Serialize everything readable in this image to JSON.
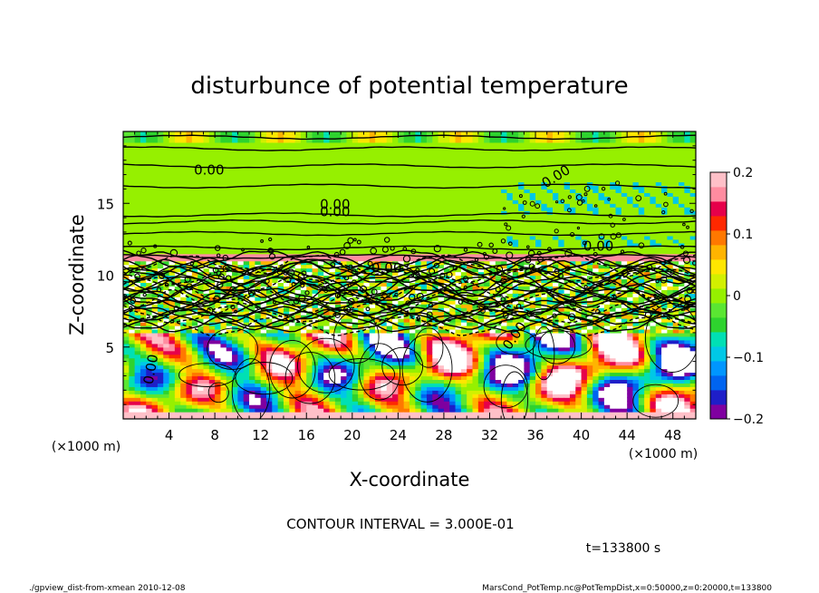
{
  "chart_data": {
    "type": "heatmap",
    "title": "disturbunce of potential temperature",
    "xlabel": "X-coordinate",
    "ylabel": "Z-coordinate",
    "x_unit": "(×1000 m)",
    "y_unit": "(×1000 m)",
    "xlim": [
      0,
      50
    ],
    "ylim": [
      0,
      20
    ],
    "xticks": [
      "4",
      "8",
      "12",
      "16",
      "20",
      "24",
      "28",
      "32",
      "36",
      "40",
      "44",
      "48"
    ],
    "yticks": [
      "5",
      "10",
      "15"
    ],
    "colorbar": {
      "min": -0.2,
      "max": 0.2,
      "ticks": [
        "0.2",
        "0.1",
        "0",
        "−0.1",
        "−0.2"
      ]
    },
    "contour_labels": [
      "0.00",
      "0.00",
      "0.00",
      "0.00",
      "0.00",
      "0.00",
      "0.00",
      "0.00"
    ],
    "contour_interval_text": "CONTOUR INTERVAL = 3.000E-01",
    "time_text": "t=133800 s"
  },
  "footer": {
    "left": "./gpview_dist-from-xmean  2010-12-08",
    "right": "MarsCond_PotTemp.nc@PotTempDist,x=0:50000,z=0:20000,t=133800"
  },
  "colors": {
    "palette": [
      "#7f00a0",
      "#1e1ec8",
      "#0064f0",
      "#0096ff",
      "#00c8e6",
      "#00e0b4",
      "#2ed32e",
      "#5ae632",
      "#96f000",
      "#d2f000",
      "#ffe600",
      "#ffb400",
      "#ff7800",
      "#ff2800",
      "#e6004a",
      "#ff8ca0",
      "#ffc0c8"
    ]
  }
}
